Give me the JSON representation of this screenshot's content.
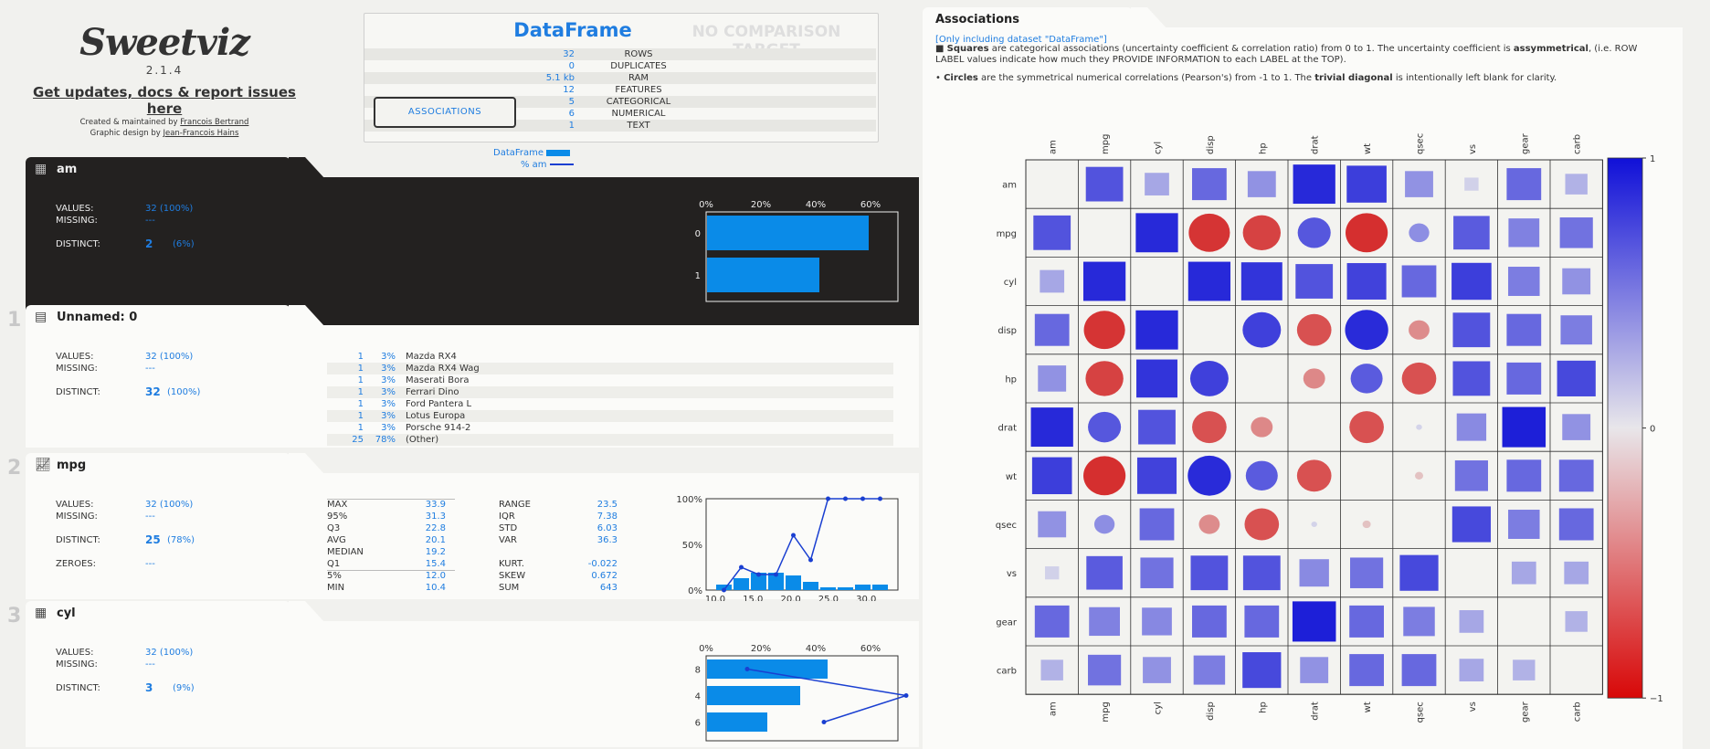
{
  "header": {
    "logo": "Sweetviz",
    "version": "2.1.4",
    "updates_link": "Get updates, docs & report issues here",
    "created_prefix": "Created & maintained by",
    "created_by": "Francois Bertrand",
    "design_prefix": "Graphic design by",
    "design_by": "Jean-Francois Hains"
  },
  "summary": {
    "title": "DataFrame",
    "comparison": "NO COMPARISON TARGET",
    "rows": [
      {
        "value": "32",
        "label": "ROWS"
      },
      {
        "value": "0",
        "label": "DUPLICATES"
      },
      {
        "value": "5.1 kb",
        "label": "RAM"
      },
      {
        "value": "12",
        "label": "FEATURES"
      },
      {
        "value": "5",
        "label": "CATEGORICAL"
      },
      {
        "value": "6",
        "label": "NUMERICAL"
      },
      {
        "value": "1",
        "label": "TEXT"
      }
    ],
    "associations_button": "ASSOCIATIONS",
    "legend_df": "DataFrame",
    "legend_pct": "% am"
  },
  "features": {
    "am": {
      "number": "",
      "name": "am",
      "values_label": "VALUES:",
      "values": "32 (100%)",
      "missing_label": "MISSING:",
      "missing": "---",
      "distinct_label": "DISTINCT:",
      "distinct": "2",
      "distinct_pct": "(6%)",
      "chart": {
        "ticks": [
          "0%",
          "20%",
          "40%",
          "60%"
        ],
        "categories": [
          "0",
          "1"
        ],
        "values": [
          59,
          41
        ]
      }
    },
    "unnamed": {
      "number": "1",
      "name": "Unnamed: 0",
      "values_label": "VALUES:",
      "values": "32 (100%)",
      "missing_label": "MISSING:",
      "missing": "---",
      "distinct_label": "DISTINCT:",
      "distinct": "32",
      "distinct_pct": "(100%)",
      "rows": [
        {
          "count": "1",
          "pct": "3%",
          "name": "Mazda RX4"
        },
        {
          "count": "1",
          "pct": "3%",
          "name": "Mazda RX4 Wag"
        },
        {
          "count": "1",
          "pct": "3%",
          "name": "Maserati Bora"
        },
        {
          "count": "1",
          "pct": "3%",
          "name": "Ferrari Dino"
        },
        {
          "count": "1",
          "pct": "3%",
          "name": "Ford Pantera L"
        },
        {
          "count": "1",
          "pct": "3%",
          "name": "Lotus Europa"
        },
        {
          "count": "1",
          "pct": "3%",
          "name": "Porsche 914-2"
        },
        {
          "count": "25",
          "pct": "78%",
          "name": "(Other)"
        }
      ]
    },
    "mpg": {
      "number": "2",
      "name": "mpg",
      "values_label": "VALUES:",
      "values": "32 (100%)",
      "missing_label": "MISSING:",
      "missing": "---",
      "distinct_label": "DISTINCT:",
      "distinct": "25",
      "distinct_pct": "(78%)",
      "zeroes_label": "ZEROES:",
      "zeroes": "---",
      "quantiles": [
        {
          "k": "MAX",
          "v": "33.9"
        },
        {
          "k": "95%",
          "v": "31.3"
        },
        {
          "k": "Q3",
          "v": "22.8"
        },
        {
          "k": "AVG",
          "v": "20.1"
        },
        {
          "k": "MEDIAN",
          "v": "19.2"
        },
        {
          "k": "Q1",
          "v": "15.4"
        },
        {
          "k": "5%",
          "v": "12.0"
        },
        {
          "k": "MIN",
          "v": "10.4"
        }
      ],
      "stats1": [
        {
          "k": "RANGE",
          "v": "23.5"
        },
        {
          "k": "IQR",
          "v": "7.38"
        },
        {
          "k": "STD",
          "v": "6.03"
        },
        {
          "k": "VAR",
          "v": "36.3"
        }
      ],
      "stats2": [
        {
          "k": "KURT.",
          "v": "-0.022"
        },
        {
          "k": "SKEW",
          "v": "0.672"
        },
        {
          "k": "SUM",
          "v": "643"
        }
      ],
      "chart": {
        "x_ticks": [
          "10.0",
          "15.0",
          "20.0",
          "25.0",
          "30.0"
        ],
        "y_ticks": [
          "100%",
          "50%",
          "0%"
        ],
        "bars": [
          6,
          13,
          19,
          19,
          16,
          9,
          3,
          3,
          6,
          6
        ],
        "line": [
          0,
          25,
          17,
          17,
          60,
          33,
          100,
          100,
          100,
          100
        ]
      }
    },
    "cyl": {
      "number": "3",
      "name": "cyl",
      "values_label": "VALUES:",
      "values": "32 (100%)",
      "missing_label": "MISSING:",
      "missing": "---",
      "distinct_label": "DISTINCT:",
      "distinct": "3",
      "distinct_pct": "(9%)",
      "chart": {
        "ticks": [
          "0%",
          "20%",
          "40%",
          "60%"
        ],
        "categories": [
          "8",
          "4",
          "6"
        ],
        "values": [
          44,
          34,
          22
        ],
        "line": [
          15,
          73,
          43
        ]
      }
    }
  },
  "associations": {
    "title": "Associations",
    "note_only": "[Only including dataset \"DataFrame\"]",
    "note_squares_prefix": "■ ",
    "note_squares_bold": "Squares",
    "note_squares_text": " are categorical associations (uncertainty coefficient & correlation ratio) from 0 to 1. The uncertainty coefficient is ",
    "note_asym": "assymmetrical",
    "note_squares_end": ", (i.e. ROW LABEL values indicate how much they PROVIDE INFORMATION to each LABEL at the TOP).",
    "note_circles_prefix": "• ",
    "note_circles_bold": "Circles",
    "note_circles_text": " are the symmetrical numerical correlations (Pearson's) from -1 to 1. The ",
    "note_trivial": "trivial diagonal",
    "note_circles_end": " is intentionally left blank for clarity.",
    "labels": [
      "am",
      "mpg",
      "cyl",
      "disp",
      "hp",
      "drat",
      "wt",
      "qsec",
      "vs",
      "gear",
      "carb"
    ],
    "colorbar_ticks": [
      "1",
      "0",
      "−1"
    ]
  },
  "colors": {
    "accent": "#1f7de0",
    "dark": "#232120",
    "bar": "#0a8be8"
  }
}
